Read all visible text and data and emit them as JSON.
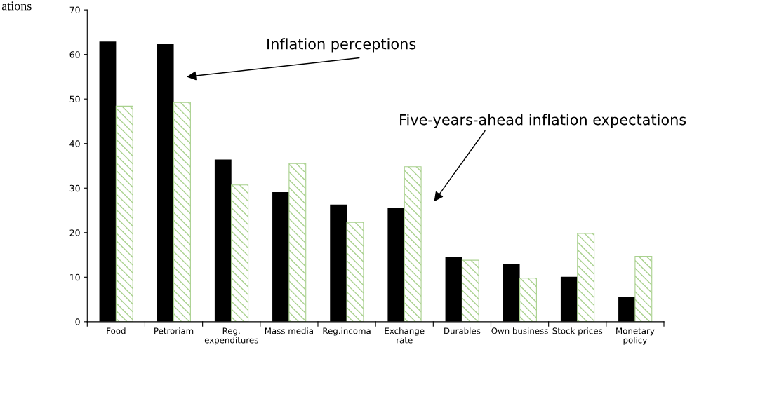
{
  "chart_data": {
    "type": "bar",
    "categories": [
      "Food",
      "Petroriam",
      "Reg.\nexpenditures",
      "Mass media",
      "Reg.incoma",
      "Exchange\nrate",
      "Durables",
      "Own business",
      "Stock prices",
      "Monetary\npolicy"
    ],
    "series": [
      {
        "color": "#000000",
        "values": [
          62.9,
          62.3,
          36.4,
          29.1,
          26.3,
          25.6,
          14.6,
          13.0,
          10.1,
          5.5
        ]
      },
      {
        "color": "#a9d18e",
        "values": [
          48.4,
          49.2,
          30.7,
          35.5,
          22.3,
          34.8,
          13.8,
          9.8,
          19.8,
          14.7
        ]
      }
    ],
    "ylim": [
      0,
      70
    ],
    "yticks": [
      0,
      10,
      20,
      30,
      40,
      50,
      60,
      70
    ],
    "grid": false,
    "annotations": [
      "ations",
      "Inflation perceptions",
      "Five-years-ahead inflation expectations"
    ]
  }
}
